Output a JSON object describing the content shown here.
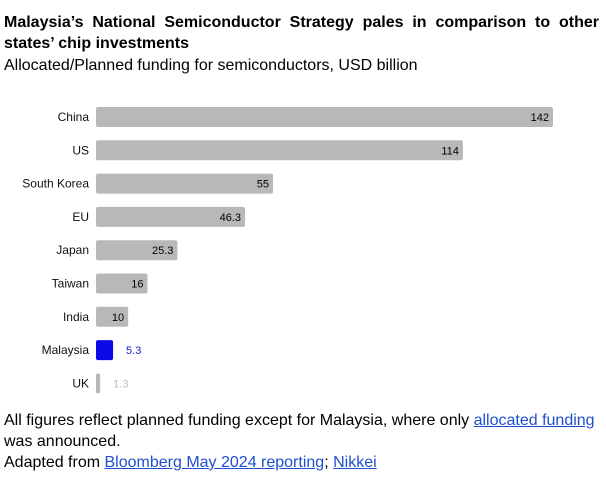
{
  "title": "Malaysia’s National Semiconductor Strategy pales in comparison to other states’ chip investments",
  "subtitle": "Allocated/Planned funding for semiconductors, USD billion",
  "chart_data": {
    "type": "bar",
    "orientation": "horizontal",
    "categories": [
      "China",
      "US",
      "South Korea",
      "EU",
      "Japan",
      "Taiwan",
      "India",
      "Malaysia",
      "UK"
    ],
    "values": [
      142,
      114,
      55,
      46.3,
      25.3,
      16,
      10,
      5.3,
      1.3
    ],
    "value_labels": [
      "142",
      "114",
      "55",
      "46.3",
      "25.3",
      "16",
      "10",
      "5.3",
      "1.3"
    ],
    "highlight": "Malaysia",
    "colors": {
      "default_bar": "#b8b8b8",
      "highlight_bar": "#0a0ae6",
      "label_inside": "#000000",
      "highlight_label": "#1a1ad6",
      "muted_label": "#bdbdbd"
    },
    "xlim": [
      0,
      142
    ],
    "grid": false,
    "legend": "none",
    "xlabel": "",
    "ylabel": ""
  },
  "footer": {
    "note_before": "All figures reflect planned funding except for Malaysia, where only ",
    "note_link": "allocated funding",
    "note_after": " was announced.",
    "source_prefix": "Adapted from ",
    "source_link_1": "Bloomberg May 2024 reporting",
    "source_sep": "; ",
    "source_link_2": "Nikkei"
  }
}
